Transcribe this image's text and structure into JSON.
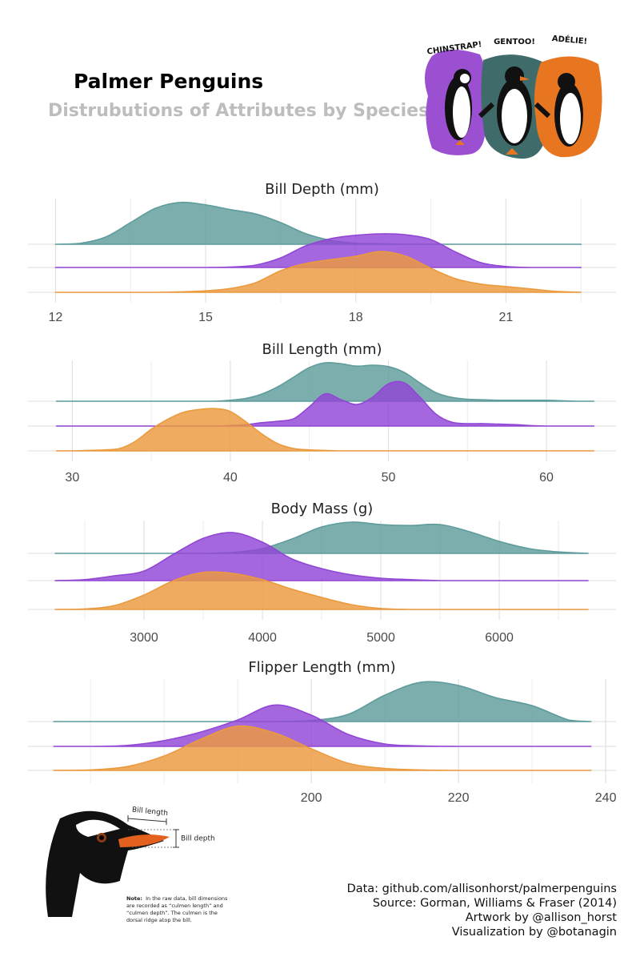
{
  "header": {
    "title": "Palmer Penguins",
    "subtitle": "Distrubutions of Attributes by Species"
  },
  "artwork": {
    "labels": [
      "CHINSTRAP!",
      "GENTOO!",
      "ADÉLIE!"
    ]
  },
  "diagram": {
    "bill_length": "Bill length",
    "bill_depth": "Bill depth",
    "note_label": "Note:",
    "note_lines": [
      "In the raw data, bill dimensions",
      "are recorded as “culmen length” and",
      "“culmen depth”. The culmen is the",
      "dorsal ridge atop the bill."
    ]
  },
  "credits": [
    "Data: github.com/allisonhorst/palmerpenguins",
    "Source: Gorman, Williams & Fraser (2014)",
    "Artwork by @allison_horst",
    "Visualization by @botanagin"
  ],
  "chart_data": [
    {
      "type": "ridgeline",
      "title": "Bill Depth (mm)",
      "grid": true,
      "x": [
        12,
        12.5,
        13,
        13.5,
        14,
        14.5,
        15,
        15.5,
        16,
        16.5,
        17,
        17.5,
        18,
        18.5,
        19,
        19.5,
        20,
        20.5,
        21,
        21.5,
        22,
        22.5
      ],
      "xlim": [
        11.45,
        23.2
      ],
      "xticks": [
        12,
        15,
        18,
        21
      ],
      "series": [
        {
          "color": "#5f9c9c",
          "values": [
            0,
            0.02,
            0.15,
            0.45,
            0.75,
            0.87,
            0.82,
            0.72,
            0.63,
            0.45,
            0.22,
            0.08,
            0.02,
            0.01,
            0,
            0,
            0,
            0,
            0,
            0,
            0,
            0
          ]
        },
        {
          "color": "#9146d6",
          "values": [
            0,
            0,
            0,
            0,
            0,
            0,
            0,
            0.01,
            0.05,
            0.2,
            0.45,
            0.6,
            0.67,
            0.7,
            0.68,
            0.58,
            0.32,
            0.1,
            0.02,
            0,
            0,
            0
          ]
        },
        {
          "color": "#eb9a3e",
          "values": [
            0,
            0,
            0,
            0,
            0,
            0.01,
            0.03,
            0.08,
            0.2,
            0.45,
            0.6,
            0.68,
            0.75,
            0.85,
            0.75,
            0.5,
            0.28,
            0.17,
            0.12,
            0.07,
            0.02,
            0
          ]
        }
      ]
    },
    {
      "type": "ridgeline",
      "title": "Bill Length (mm)",
      "grid": true,
      "x": [
        29,
        30,
        31,
        32,
        33,
        34,
        35,
        36,
        37,
        38,
        39,
        40,
        41,
        42,
        43,
        44,
        45,
        46,
        47,
        48,
        49,
        50,
        51,
        52,
        53,
        54,
        55,
        56,
        57,
        58,
        59,
        60,
        61,
        62,
        63
      ],
      "xlim": [
        27.2,
        64.4
      ],
      "xticks": [
        30,
        40,
        50,
        60
      ],
      "series": [
        {
          "color": "#5f9c9c",
          "values": [
            0,
            0,
            0,
            0,
            0,
            0,
            0,
            0,
            0,
            0,
            0,
            0.02,
            0.06,
            0.15,
            0.3,
            0.5,
            0.7,
            0.8,
            0.78,
            0.73,
            0.75,
            0.72,
            0.6,
            0.38,
            0.18,
            0.08,
            0.04,
            0.03,
            0.02,
            0.02,
            0.02,
            0.02,
            0.01,
            0,
            0
          ]
        },
        {
          "color": "#9146d6",
          "values": [
            0,
            0,
            0,
            0,
            0,
            0,
            0,
            0,
            0,
            0,
            0,
            0.01,
            0.03,
            0.07,
            0.1,
            0.15,
            0.4,
            0.67,
            0.55,
            0.45,
            0.6,
            0.88,
            0.9,
            0.6,
            0.25,
            0.08,
            0.05,
            0.05,
            0.04,
            0.03,
            0.01,
            0,
            0,
            0,
            0
          ]
        },
        {
          "color": "#eb9a3e",
          "values": [
            0,
            0,
            0.01,
            0.02,
            0.05,
            0.2,
            0.45,
            0.65,
            0.8,
            0.86,
            0.88,
            0.82,
            0.6,
            0.35,
            0.15,
            0.05,
            0.02,
            0.01,
            0,
            0,
            0,
            0,
            0,
            0,
            0,
            0,
            0,
            0,
            0,
            0,
            0,
            0,
            0,
            0,
            0
          ]
        }
      ]
    },
    {
      "type": "ridgeline",
      "title": "Body Mass (g)",
      "grid": true,
      "x": [
        2250,
        2500,
        2750,
        3000,
        3250,
        3500,
        3750,
        4000,
        4250,
        4500,
        4750,
        5000,
        5250,
        5500,
        5750,
        6000,
        6250,
        6500,
        6750
      ],
      "xlim": [
        2020,
        6986
      ],
      "xticks": [
        3000,
        4000,
        5000,
        6000
      ],
      "series": [
        {
          "color": "#5f9c9c",
          "values": [
            0,
            0,
            0,
            0,
            0,
            0,
            0.02,
            0.1,
            0.3,
            0.55,
            0.65,
            0.6,
            0.58,
            0.6,
            0.45,
            0.25,
            0.1,
            0.03,
            0
          ]
        },
        {
          "color": "#9146d6",
          "values": [
            0,
            0.02,
            0.1,
            0.2,
            0.55,
            0.88,
            1.0,
            0.8,
            0.45,
            0.25,
            0.12,
            0.05,
            0.02,
            0,
            0,
            0,
            0,
            0,
            0
          ]
        },
        {
          "color": "#eb9a3e",
          "values": [
            0,
            0.01,
            0.08,
            0.3,
            0.6,
            0.77,
            0.75,
            0.62,
            0.42,
            0.25,
            0.1,
            0.02,
            0,
            0,
            0,
            0,
            0,
            0,
            0
          ]
        }
      ]
    },
    {
      "type": "ridgeline",
      "title": "Flipper Length (mm)",
      "grid": true,
      "x": [
        165,
        170,
        175,
        180,
        185,
        190,
        195,
        200,
        205,
        210,
        215,
        220,
        225,
        230,
        235,
        238
      ],
      "xlim": [
        161.5,
        241.4
      ],
      "xticks": [
        200,
        220,
        240
      ],
      "series": [
        {
          "color": "#5f9c9c",
          "values": [
            0,
            0,
            0,
            0,
            0,
            0,
            0,
            0.02,
            0.15,
            0.55,
            0.82,
            0.75,
            0.5,
            0.33,
            0.03,
            0
          ]
        },
        {
          "color": "#9146d6",
          "values": [
            0,
            0,
            0.02,
            0.12,
            0.3,
            0.55,
            0.86,
            0.65,
            0.25,
            0.05,
            0.01,
            0,
            0,
            0,
            0,
            0
          ]
        },
        {
          "color": "#eb9a3e",
          "values": [
            0,
            0.01,
            0.08,
            0.3,
            0.65,
            0.92,
            0.78,
            0.45,
            0.15,
            0.04,
            0.01,
            0,
            0,
            0,
            0,
            0
          ]
        }
      ]
    }
  ]
}
